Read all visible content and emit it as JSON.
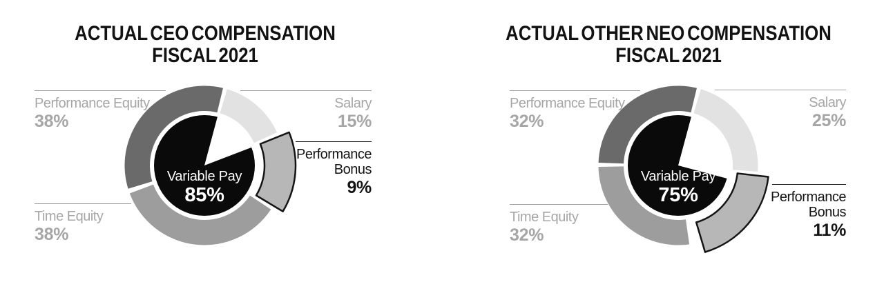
{
  "page": {
    "background": "#ffffff"
  },
  "charts": [
    {
      "id": "ceo",
      "title": "ACTUAL CEO COMPENSATION\nFISCAL 2021",
      "center": {
        "label": "Variable Pay",
        "value": "85%"
      },
      "callouts": {
        "performance_equity": {
          "name": "Performance Equity",
          "pct": "38%"
        },
        "salary": {
          "name": "Salary",
          "pct": "15%"
        },
        "performance_bonus": {
          "name": "Performance\nBonus",
          "pct": "9%"
        },
        "time_equity": {
          "name": "Time Equity",
          "pct": "38%"
        }
      }
    },
    {
      "id": "neo",
      "title": "ACTUAL OTHER NEO COMPENSATION\nFISCAL 2021",
      "center": {
        "label": "Variable Pay",
        "value": "75%"
      },
      "callouts": {
        "performance_equity": {
          "name": "Performance Equity",
          "pct": "32%"
        },
        "salary": {
          "name": "Salary",
          "pct": "25%"
        },
        "performance_bonus": {
          "name": "Performance\nBonus",
          "pct": "11%"
        },
        "time_equity": {
          "name": "Time Equity",
          "pct": "32%"
        }
      }
    }
  ],
  "colors": {
    "salary": "#e2e2e2",
    "performance_bonus": "#b7b7b7",
    "time_equity": "#9d9d9d",
    "performance_equity": "#6a6a6a",
    "center_pie": "#0a0a0a",
    "bonus_outline": "#141414",
    "gray_text": "#a6a6a6",
    "dark_text": "#141414",
    "leader_line_gray": "#9c9c9c"
  },
  "chart_data": [
    {
      "type": "pie",
      "variant": "exploded-donut-with-center-pie",
      "title": "ACTUAL CEO COMPENSATION FISCAL 2021",
      "direction": "clockwise",
      "start_angle_deg": 15,
      "segments": [
        {
          "label": "Salary",
          "value_pct": 15,
          "color": "#e2e2e2"
        },
        {
          "label": "Performance Bonus",
          "value_pct": 9,
          "color": "#b7b7b7",
          "exploded": true,
          "outline": "#141414"
        },
        {
          "label": "Time Equity",
          "value_pct": 38,
          "color": "#9d9d9d"
        },
        {
          "label": "Performance Equity",
          "value_pct": 38,
          "color": "#6a6a6a"
        }
      ],
      "center": {
        "label": "Variable Pay",
        "value_pct": 85,
        "color": "#0a0a0a",
        "cutout_segment": "Salary"
      },
      "render": {
        "rOut": 115.5,
        "rIn": 79,
        "pieR": 73,
        "exRIn": 84,
        "exROut": 129,
        "exOffset": 3,
        "ring": [
          {
            "name": "salary",
            "from": 16.5,
            "to": 65.5,
            "color": "#e2e2e2"
          },
          {
            "name": "time-equity",
            "from": 123.5,
            "to": 249.5,
            "color": "#9d9d9d"
          },
          {
            "name": "performance-equity",
            "from": 253,
            "to": 373.5,
            "color": "#6a6a6a"
          }
        ],
        "exploded": {
          "name": "performance-bonus",
          "from": 68,
          "to": 121,
          "color": "#b7b7b7",
          "stroke": "#141414",
          "strokeW": 2.5
        },
        "wedge": {
          "from": 15,
          "to": 69
        }
      }
    },
    {
      "type": "pie",
      "variant": "exploded-donut-with-center-pie",
      "title": "ACTUAL OTHER NEO COMPENSATION FISCAL 2021",
      "direction": "clockwise",
      "start_angle_deg": 15,
      "segments": [
        {
          "label": "Salary",
          "value_pct": 25,
          "color": "#e2e2e2"
        },
        {
          "label": "Performance Bonus",
          "value_pct": 11,
          "color": "#b7b7b7",
          "exploded": true,
          "outline": "#141414"
        },
        {
          "label": "Time Equity",
          "value_pct": 32,
          "color": "#9d9d9d"
        },
        {
          "label": "Performance Equity",
          "value_pct": 32,
          "color": "#6a6a6a"
        }
      ],
      "center": {
        "label": "Variable Pay",
        "value_pct": 75,
        "color": "#0a0a0a",
        "cutout_segment": "Salary"
      },
      "render": {
        "rOut": 115.5,
        "rIn": 79,
        "pieR": 73,
        "exRIn": 84,
        "exROut": 129,
        "exOffset": 3,
        "ring": [
          {
            "name": "salary",
            "from": 16.5,
            "to": 94.5,
            "color": "#e2e2e2"
          },
          {
            "name": "time-equity",
            "from": 172,
            "to": 269,
            "color": "#9d9d9d"
          },
          {
            "name": "performance-equity",
            "from": 272,
            "to": 373.5,
            "color": "#6a6a6a"
          }
        ],
        "exploded": {
          "name": "performance-bonus",
          "from": 96.5,
          "to": 163.5,
          "color": "#b7b7b7",
          "stroke": "#141414",
          "strokeW": 2.5
        },
        "wedge": {
          "from": 15,
          "to": 105
        }
      }
    }
  ]
}
